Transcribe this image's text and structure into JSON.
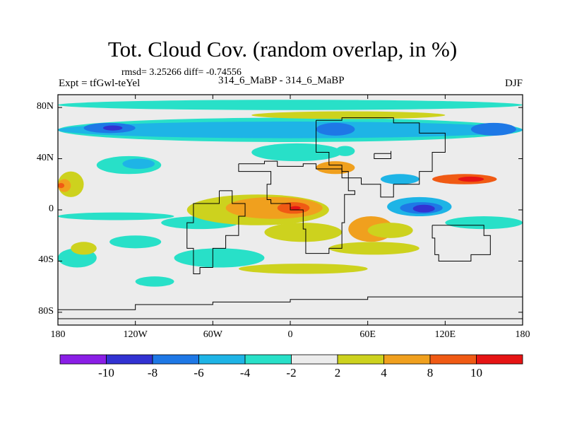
{
  "chart_data": {
    "type": "heatmap",
    "title": "Tot. Cloud Cov. (random overlap, in %)",
    "stats_line": "rmsd= 3.25266  diff= -0.74556",
    "left_label": "Expt = tfGwl-teYel",
    "center_label": "314_6_MaBP - 314_6_MaBP",
    "right_label": "DJF",
    "x_ticks": [
      {
        "value": -180,
        "label": "180"
      },
      {
        "value": -120,
        "label": "120W"
      },
      {
        "value": -60,
        "label": "60W"
      },
      {
        "value": 0,
        "label": "0"
      },
      {
        "value": 60,
        "label": "60E"
      },
      {
        "value": 120,
        "label": "120E"
      },
      {
        "value": 180,
        "label": "180"
      }
    ],
    "y_ticks": [
      {
        "value": 80,
        "label": "80N"
      },
      {
        "value": 40,
        "label": "40N"
      },
      {
        "value": 0,
        "label": "0"
      },
      {
        "value": -40,
        "label": "40S"
      },
      {
        "value": -80,
        "label": "80S"
      }
    ],
    "xlim": [
      -180,
      180
    ],
    "ylim": [
      -90,
      90
    ],
    "colorbar": {
      "levels": [
        -12,
        -10,
        -8,
        -6,
        -4,
        -2,
        2,
        4,
        8,
        10,
        12
      ],
      "labels": [
        "-10",
        "-8",
        "-6",
        "-4",
        "-2",
        "2",
        "4",
        "8",
        "10"
      ],
      "colors": [
        "#8a1ee6",
        "#3232d2",
        "#1e78e6",
        "#1eb4e6",
        "#28e0c8",
        "#ececec",
        "#cdd21e",
        "#f0a01e",
        "#f05a14",
        "#e61414"
      ]
    },
    "regions": [
      {
        "level": -4,
        "lon": [
          -180,
          180
        ],
        "lat": [
          53,
          72
        ]
      },
      {
        "level": -6,
        "lon": [
          -180,
          180
        ],
        "lat": [
          56,
          69
        ]
      },
      {
        "level": -8,
        "lon": [
          -160,
          -120
        ],
        "lat": [
          60,
          68
        ]
      },
      {
        "level": -10,
        "lon": [
          -145,
          -130
        ],
        "lat": [
          62,
          66
        ]
      },
      {
        "level": -8,
        "lon": [
          20,
          50
        ],
        "lat": [
          58,
          68
        ]
      },
      {
        "level": -8,
        "lon": [
          140,
          175
        ],
        "lat": [
          58,
          68
        ]
      },
      {
        "level": -4,
        "lon": [
          -180,
          180
        ],
        "lat": [
          78,
          86
        ]
      },
      {
        "level": 2,
        "lon": [
          -30,
          120
        ],
        "lat": [
          71,
          77
        ]
      },
      {
        "level": 2,
        "lon": [
          -180,
          -160
        ],
        "lat": [
          10,
          30
        ]
      },
      {
        "level": 4,
        "lon": [
          -180,
          -170
        ],
        "lat": [
          14,
          24
        ]
      },
      {
        "level": 8,
        "lon": [
          -180,
          -175
        ],
        "lat": [
          17,
          21
        ]
      },
      {
        "level": -4,
        "lon": [
          -150,
          -100
        ],
        "lat": [
          28,
          42
        ]
      },
      {
        "level": -6,
        "lon": [
          -130,
          -105
        ],
        "lat": [
          32,
          40
        ]
      },
      {
        "level": -4,
        "lon": [
          -180,
          -90
        ],
        "lat": [
          -8,
          -2
        ]
      },
      {
        "level": -4,
        "lon": [
          -100,
          -40
        ],
        "lat": [
          -15,
          -5
        ]
      },
      {
        "level": 2,
        "lon": [
          -80,
          30
        ],
        "lat": [
          -12,
          12
        ]
      },
      {
        "level": 4,
        "lon": [
          -50,
          25
        ],
        "lat": [
          -7,
          10
        ]
      },
      {
        "level": 8,
        "lon": [
          -10,
          15
        ],
        "lat": [
          -3,
          6
        ]
      },
      {
        "level": 10,
        "lon": [
          0,
          8
        ],
        "lat": [
          0,
          3
        ]
      },
      {
        "level": 2,
        "lon": [
          -20,
          40
        ],
        "lat": [
          -25,
          -10
        ]
      },
      {
        "level": -4,
        "lon": [
          -140,
          -100
        ],
        "lat": [
          -30,
          -20
        ]
      },
      {
        "level": -4,
        "lon": [
          -180,
          -150
        ],
        "lat": [
          -45,
          -30
        ]
      },
      {
        "level": -4,
        "lon": [
          -90,
          -20
        ],
        "lat": [
          -45,
          -30
        ]
      },
      {
        "level": 2,
        "lon": [
          -170,
          -150
        ],
        "lat": [
          -35,
          -25
        ]
      },
      {
        "level": 4,
        "lon": [
          45,
          80
        ],
        "lat": [
          -25,
          -5
        ]
      },
      {
        "level": 2,
        "lon": [
          30,
          100
        ],
        "lat": [
          -35,
          -25
        ]
      },
      {
        "level": 2,
        "lon": [
          -40,
          60
        ],
        "lat": [
          -50,
          -42
        ]
      },
      {
        "level": -2,
        "lon": [
          100,
          150
        ],
        "lat": [
          -55,
          -35
        ]
      },
      {
        "level": -4,
        "lon": [
          -30,
          40
        ],
        "lat": [
          38,
          52
        ]
      },
      {
        "level": 4,
        "lon": [
          20,
          50
        ],
        "lat": [
          28,
          38
        ]
      },
      {
        "level": -4,
        "lon": [
          35,
          50
        ],
        "lat": [
          42,
          50
        ]
      },
      {
        "level": -6,
        "lon": [
          70,
          100
        ],
        "lat": [
          20,
          28
        ]
      },
      {
        "level": 8,
        "lon": [
          110,
          160
        ],
        "lat": [
          20,
          28
        ]
      },
      {
        "level": 10,
        "lon": [
          130,
          150
        ],
        "lat": [
          22,
          26
        ]
      },
      {
        "level": -6,
        "lon": [
          75,
          125
        ],
        "lat": [
          -5,
          10
        ]
      },
      {
        "level": -8,
        "lon": [
          85,
          118
        ],
        "lat": [
          -3,
          6
        ]
      },
      {
        "level": -10,
        "lon": [
          95,
          112
        ],
        "lat": [
          -2,
          4
        ]
      },
      {
        "level": 2,
        "lon": [
          60,
          95
        ],
        "lat": [
          -22,
          -10
        ]
      },
      {
        "level": -4,
        "lon": [
          120,
          180
        ],
        "lat": [
          -15,
          -5
        ]
      },
      {
        "level": -2,
        "lon": [
          -60,
          -40
        ],
        "lat": [
          -62,
          -55
        ]
      },
      {
        "level": -4,
        "lon": [
          -120,
          -90
        ],
        "lat": [
          -60,
          -52
        ]
      }
    ]
  }
}
